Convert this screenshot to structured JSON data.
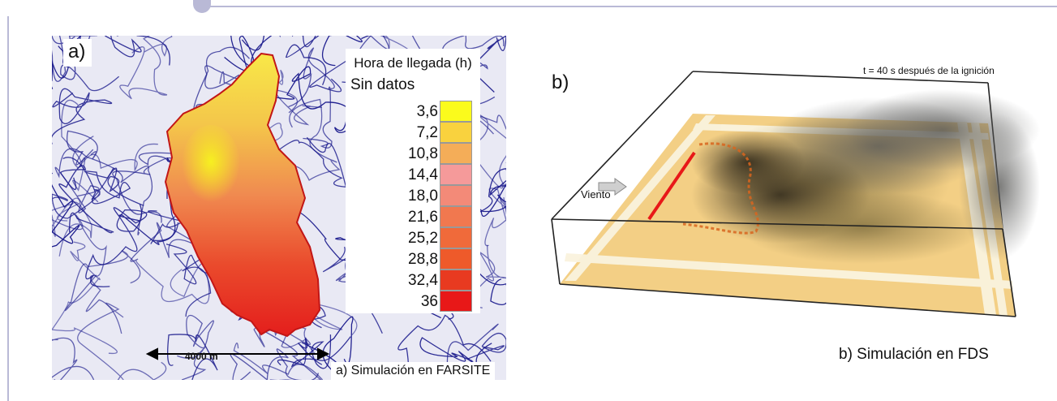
{
  "panel_a": {
    "letter": "a)",
    "legend": {
      "title": "Hora de llegada (h)",
      "no_data_label": "Sin datos",
      "entries": [
        {
          "label": "3,6",
          "color": "#fbfb1c"
        },
        {
          "label": "7,2",
          "color": "#f9d23e"
        },
        {
          "label": "10,8",
          "color": "#f4ad58"
        },
        {
          "label": "14,4",
          "color": "#f59a9a"
        },
        {
          "label": "18,0",
          "color": "#f38a78"
        },
        {
          "label": "21,6",
          "color": "#f1784f"
        },
        {
          "label": "25,2",
          "color": "#f06a3a"
        },
        {
          "label": "28,8",
          "color": "#ee5a2a"
        },
        {
          "label": "32,4",
          "color": "#e83a20"
        },
        {
          "label": "36",
          "color": "#e81818"
        }
      ]
    },
    "scale_label": "4000 m",
    "caption": "a) Simulación en FARSITE",
    "contour_color": "#1a1a8c"
  },
  "panel_b": {
    "letter": "b)",
    "time_label": "t = 40 s después de la ignición",
    "wind_label": "Viento",
    "caption": "b) Simulación en FDS",
    "ground_color": "#f3cf85",
    "ignition_color": "#e81818"
  }
}
